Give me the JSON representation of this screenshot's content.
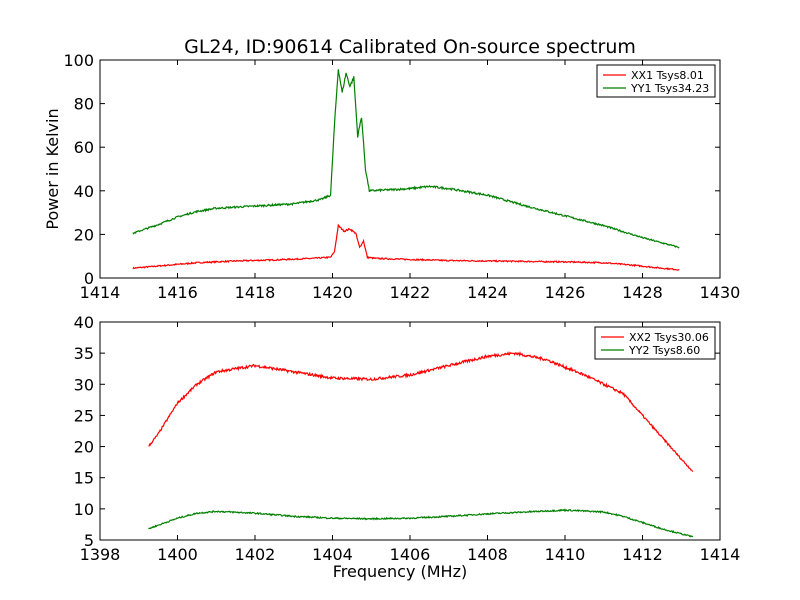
{
  "figure": {
    "title": "GL24, ID:90614 Calibrated On-source spectrum"
  },
  "chart_data": [
    {
      "type": "line",
      "title": "GL24, ID:90614 Calibrated On-source spectrum",
      "xlabel": "",
      "ylabel": "Power in Kelvin",
      "xlim": [
        1414,
        1430
      ],
      "ylim": [
        0,
        100
      ],
      "xticks": [
        1414,
        1416,
        1418,
        1420,
        1422,
        1424,
        1426,
        1428,
        1430
      ],
      "yticks": [
        0,
        20,
        40,
        60,
        80,
        100
      ],
      "grid": false,
      "legend_position": "top-right",
      "series": [
        {
          "name": "XX1 Tsys8.01",
          "color": "#ff0000",
          "x": [
            1414.85,
            1415.5,
            1416.5,
            1417.5,
            1418.5,
            1419.5,
            1419.95,
            1420.05,
            1420.15,
            1420.3,
            1420.45,
            1420.6,
            1420.7,
            1420.8,
            1420.9,
            1421.1,
            1422.0,
            1423.0,
            1424.0,
            1425.0,
            1426.0,
            1427.0,
            1427.8,
            1428.5,
            1428.95
          ],
          "y": [
            4.5,
            5.5,
            7.0,
            7.8,
            8.3,
            9.0,
            9.5,
            12.0,
            24.0,
            21.5,
            22.5,
            20.5,
            14.0,
            17.0,
            9.5,
            9.0,
            8.5,
            8.0,
            7.8,
            7.6,
            7.4,
            7.0,
            5.8,
            4.5,
            3.8
          ]
        },
        {
          "name": "YY1 Tsys34.23",
          "color": "#008000",
          "x": [
            1414.85,
            1415.5,
            1416.0,
            1416.5,
            1417.0,
            1418.0,
            1419.0,
            1419.7,
            1419.95,
            1420.05,
            1420.15,
            1420.25,
            1420.35,
            1420.45,
            1420.55,
            1420.65,
            1420.75,
            1420.85,
            1420.95,
            1421.5,
            1422.0,
            1422.5,
            1423.0,
            1424.0,
            1425.0,
            1426.0,
            1427.0,
            1428.0,
            1428.95
          ],
          "y": [
            20.5,
            24.5,
            28.0,
            30.5,
            32.0,
            33.0,
            34.0,
            36.0,
            38.0,
            70.0,
            96.0,
            85.0,
            94.0,
            88.0,
            92.0,
            65.0,
            74.0,
            50.0,
            40.0,
            40.5,
            41.0,
            42.0,
            41.0,
            38.0,
            33.0,
            28.5,
            24.0,
            18.5,
            14.0
          ]
        }
      ]
    },
    {
      "type": "line",
      "title": "",
      "xlabel": "Frequency (MHz)",
      "ylabel": "",
      "xlim": [
        1398,
        1414
      ],
      "ylim": [
        5,
        40
      ],
      "xticks": [
        1398,
        1400,
        1402,
        1404,
        1406,
        1408,
        1410,
        1412,
        1414
      ],
      "yticks": [
        5,
        10,
        15,
        20,
        25,
        30,
        35,
        40
      ],
      "grid": false,
      "legend_position": "top-right",
      "series": [
        {
          "name": "XX2 Tsys30.06",
          "color": "#ff0000",
          "x": [
            1399.25,
            1399.5,
            1400.0,
            1400.5,
            1401.0,
            1402.0,
            1403.0,
            1404.0,
            1405.0,
            1406.0,
            1407.0,
            1408.0,
            1408.7,
            1409.5,
            1410.5,
            1411.0,
            1411.5,
            1412.0,
            1412.5,
            1413.0,
            1413.3
          ],
          "y": [
            20.0,
            22.0,
            27.0,
            30.0,
            32.0,
            33.0,
            32.0,
            31.0,
            30.8,
            31.5,
            33.0,
            34.5,
            35.0,
            34.0,
            31.5,
            30.0,
            28.5,
            25.0,
            21.5,
            18.0,
            16.0
          ]
        },
        {
          "name": "YY2 Tsys8.60",
          "color": "#008000",
          "x": [
            1399.25,
            1400.0,
            1400.5,
            1401.0,
            1402.0,
            1403.0,
            1404.0,
            1405.0,
            1406.0,
            1407.0,
            1408.0,
            1409.0,
            1410.0,
            1411.0,
            1411.5,
            1412.0,
            1412.5,
            1413.3
          ],
          "y": [
            6.8,
            8.5,
            9.3,
            9.6,
            9.3,
            8.8,
            8.5,
            8.4,
            8.5,
            8.8,
            9.2,
            9.5,
            9.8,
            9.5,
            8.8,
            7.8,
            6.8,
            5.5
          ]
        }
      ]
    }
  ]
}
